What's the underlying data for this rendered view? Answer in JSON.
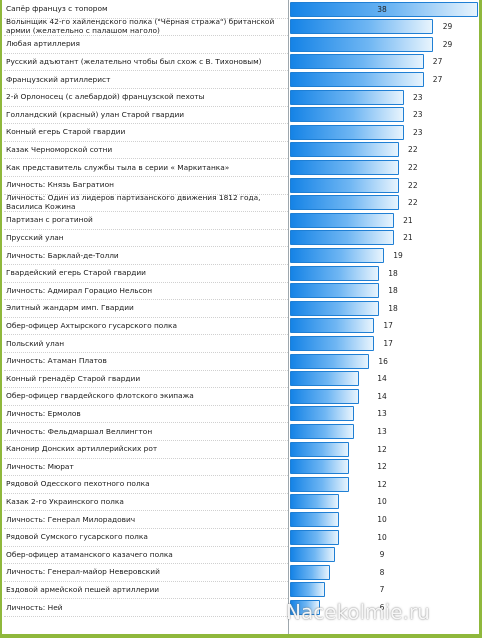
{
  "chart_data": {
    "type": "bar",
    "orientation": "horizontal",
    "categories": [
      "Сапёр француз с топором",
      "Волынщик 42-го хайлендского полка (\"Чёрная стража\") британской армии (желательно с палашом наголо)",
      "Любая артиллерия",
      "Русский адъютант (желательно чтобы был схож с В. Тихоновым)",
      "Французский артиллерист",
      "2-й Орлоносец (с алебардой) французской пехоты",
      "Голландский (красный) улан Старой гвардии",
      "Конный егерь Старой гвардии",
      "Казак Черноморской сотни",
      "Как представитель службы тыла в серии « Маркитанка»",
      "Личность: Князь Багратион",
      "Личность: Один из лидеров партизанского движения 1812 года, Василиса Кожина",
      "Партизан с рогатиной",
      "Прусский улан",
      "Личность: Барклай-де-Толли",
      "Гвардейский егерь Старой гвардии",
      "Личность: Адмирал Горацио Нельсон",
      "Элитный жандарм имп. Гвардии",
      "Обер-офицер Ахтырского гусарского полка",
      "Польский улан",
      "Личность: Атаман Платов",
      "Конный гренадёр Старой гвардии",
      "Обер-офицер гвардейского флотского экипажа",
      "Личность: Ермолов",
      "Личность: Фельдмаршал Веллингтон",
      "Канонир Донских артиллерийских рот",
      "Личность: Мюрат",
      "Рядовой Одесского пехотного полка",
      "Казак 2-го Украинского полка",
      "Личность: Генерал Милорадович",
      "Рядовой Сумского гусарского полка",
      "Обер-офицер атаманского казачего полка",
      "Личность: Генерал-майор Неверовский",
      "Ездовой армейской пешей артиллерии",
      "Личность: Ней"
    ],
    "values": [
      38,
      29,
      29,
      27,
      27,
      23,
      23,
      23,
      22,
      22,
      22,
      22,
      21,
      21,
      19,
      18,
      18,
      18,
      17,
      17,
      16,
      14,
      14,
      13,
      13,
      12,
      12,
      12,
      10,
      10,
      10,
      9,
      8,
      7,
      6
    ],
    "xlim": [
      0,
      38
    ],
    "grid": false,
    "colors": {
      "bar": "#1583e6",
      "bar_border": "#1f7fd4",
      "accent": "#8fb83c"
    }
  },
  "watermark": "Nacekolmie.ru"
}
